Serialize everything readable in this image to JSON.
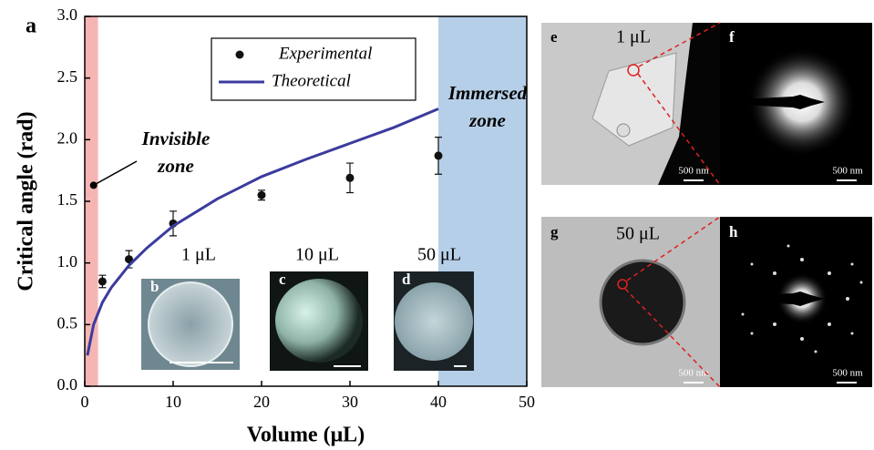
{
  "chart_data": {
    "type": "scatter",
    "panel_label": "a",
    "xlabel": "Volume (μL)",
    "ylabel": "Critical angle (rad)",
    "xlim": [
      0,
      50
    ],
    "ylim": [
      0,
      3
    ],
    "xticks": [
      0,
      10,
      20,
      30,
      40,
      50
    ],
    "yticks": [
      {
        "value": 0,
        "label": "0.0"
      },
      0.5,
      {
        "value": 1,
        "label": "1.0"
      },
      1.5,
      {
        "value": 2,
        "label": "2.0"
      },
      2.5,
      {
        "value": 3,
        "label": "3.0"
      }
    ],
    "shaded_regions": [
      {
        "xlim": [
          0,
          1.5
        ],
        "color": "#f5b5b3"
      },
      {
        "xlim": [
          40,
          50
        ],
        "color": "#b6cfe8"
      }
    ],
    "series": [
      {
        "name": "Experimental",
        "type": "scatter",
        "color": "#111111",
        "x": [
          2,
          5,
          10,
          20,
          30,
          40
        ],
        "values": [
          0.85,
          1.03,
          1.32,
          1.55,
          1.69,
          1.87
        ],
        "errors": [
          0.05,
          0.07,
          0.1,
          0.04,
          0.12,
          0.15
        ]
      },
      {
        "name": "Theoretical",
        "type": "line",
        "color": "#3b3b9e",
        "x": [
          0.3,
          1,
          2,
          3,
          5,
          7,
          10,
          15,
          20,
          25,
          30,
          35,
          40
        ],
        "values": [
          0.25,
          0.5,
          0.68,
          0.8,
          0.98,
          1.12,
          1.3,
          1.52,
          1.7,
          1.84,
          1.97,
          2.1,
          2.25
        ]
      }
    ],
    "annotations": [
      {
        "lines": [
          "Invisible",
          "zone"
        ],
        "point": [
          1,
          1.63
        ]
      },
      {
        "lines": [
          "Immersed",
          "zone"
        ]
      }
    ]
  },
  "insets": [
    {
      "letter": "b",
      "label": "1 μL"
    },
    {
      "letter": "c",
      "label": "10 μL"
    },
    {
      "letter": "d",
      "label": "50 μL"
    }
  ],
  "image_panels": [
    {
      "letter": "e",
      "label": "1 μL",
      "scale": "500 nm"
    },
    {
      "letter": "f",
      "scale": "500 nm"
    },
    {
      "letter": "g",
      "label": "50 μL",
      "scale": "500 nm"
    },
    {
      "letter": "h",
      "scale": "500 nm"
    }
  ]
}
